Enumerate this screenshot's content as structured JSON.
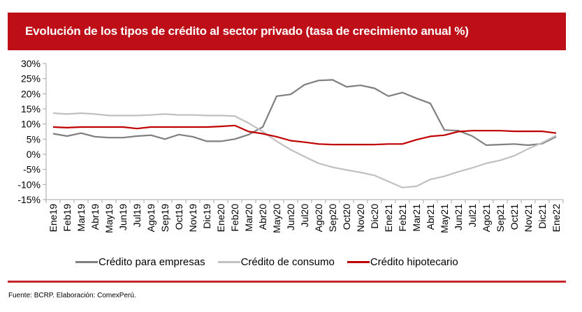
{
  "header": {
    "title": "Evolución de los tipos de crédito al sector privado (tasa de crecimiento anual %)"
  },
  "footer": {
    "source": "Fuente: BCRP. Elaboración: ComexPerú."
  },
  "colors": {
    "title_bg": "#be0f18",
    "rule": "#c8262e",
    "empresas": "#7f7f7f",
    "consumo": "#c0c0c0",
    "hipotecario": "#c00000",
    "axis": "#a6a6a6"
  },
  "chart_data": {
    "type": "line",
    "title": "Evolución de los tipos de crédito al sector privado (tasa de crecimiento anual %)",
    "xlabel": "",
    "ylabel": "",
    "ylim": [
      -15,
      30
    ],
    "yticks": [
      30,
      25,
      20,
      15,
      10,
      5,
      0,
      -5,
      -10,
      -15
    ],
    "ytick_labels": [
      "30%",
      "25%",
      "20%",
      "15%",
      "10%",
      "5%",
      "0%",
      "-5%",
      "-10%",
      "-15%"
    ],
    "grid": false,
    "legend_position": "bottom",
    "categories": [
      "Ene19",
      "Feb19",
      "Mar19",
      "Abr19",
      "May19",
      "Jun19",
      "Jul19",
      "Ago19",
      "Sep19",
      "Oct19",
      "Nov19",
      "Dic19",
      "Ene20",
      "Feb20",
      "Mar20",
      "Abr20",
      "May20",
      "Jun20",
      "Jul20",
      "Ago20",
      "Sep20",
      "Oct20",
      "Nov20",
      "Dic20",
      "Ene21",
      "Feb21",
      "Mar21",
      "Abr21",
      "May21",
      "Jun21",
      "Jul21",
      "Ago21",
      "Sep21",
      "Oct21",
      "Nov21",
      "Dic21",
      "Ene22"
    ],
    "series": [
      {
        "name": "Crédito para empresas",
        "color": "#7f7f7f",
        "values": [
          6.8,
          6.0,
          7.0,
          5.8,
          5.5,
          5.5,
          6.0,
          6.3,
          5.0,
          6.5,
          5.8,
          4.3,
          4.3,
          5.0,
          6.5,
          9.0,
          19.2,
          19.8,
          23.0,
          24.4,
          24.6,
          22.3,
          22.8,
          21.8,
          19.2,
          20.4,
          18.5,
          16.8,
          8.0,
          7.8,
          6.0,
          3.0,
          3.2,
          3.4,
          3.0,
          3.5,
          5.8
        ]
      },
      {
        "name": "Crédito de consumo",
        "color": "#c0c0c0",
        "values": [
          13.6,
          13.3,
          13.6,
          13.3,
          12.8,
          12.8,
          12.8,
          13.0,
          13.3,
          13.0,
          13.0,
          12.8,
          12.8,
          12.6,
          10.3,
          7.5,
          4.3,
          1.5,
          -0.8,
          -3.0,
          -4.3,
          -5.2,
          -6.0,
          -7.0,
          -9.0,
          -11.0,
          -10.6,
          -8.3,
          -7.3,
          -5.8,
          -4.5,
          -3.0,
          -2.0,
          -0.5,
          1.8,
          3.8,
          6.2
        ]
      },
      {
        "name": "Crédito hipotecario",
        "color": "#c00000",
        "values": [
          9.0,
          8.8,
          9.0,
          9.0,
          9.0,
          9.0,
          8.5,
          9.0,
          9.0,
          9.0,
          9.0,
          9.0,
          9.2,
          9.5,
          7.5,
          6.8,
          5.8,
          4.5,
          4.0,
          3.4,
          3.2,
          3.2,
          3.2,
          3.2,
          3.4,
          3.4,
          4.8,
          5.9,
          6.3,
          7.5,
          7.8,
          7.8,
          7.8,
          7.6,
          7.6,
          7.6,
          7.0
        ]
      }
    ]
  }
}
